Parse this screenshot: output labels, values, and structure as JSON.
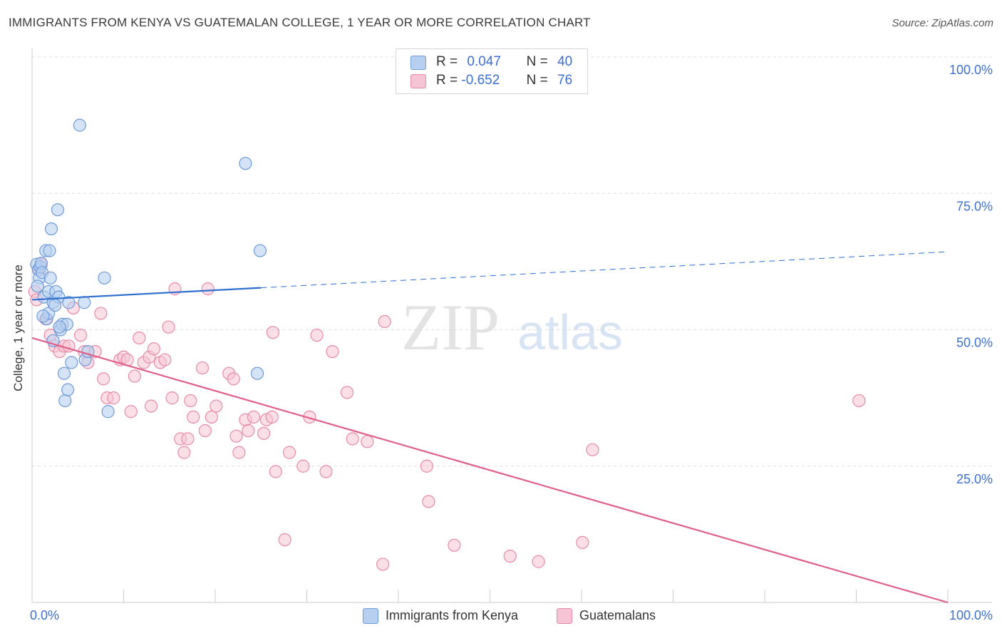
{
  "title": "IMMIGRANTS FROM KENYA VS GUATEMALAN COLLEGE, 1 YEAR OR MORE CORRELATION CHART",
  "source": "Source: ZipAtlas.com",
  "legend": {
    "kenya": {
      "r_label": "R =",
      "r_value": "0.047",
      "n_label": "N =",
      "n_value": "40"
    },
    "guatemalan": {
      "r_label": "R =",
      "r_value": "-0.652",
      "n_label": "N =",
      "n_value": "76"
    }
  },
  "watermark": {
    "zip": "ZIP",
    "atlas": "atlas"
  },
  "colors": {
    "kenya_fill": "#b8d0f0",
    "kenya_stroke": "#6f9ad8",
    "kenya_line": "#2f6fd0",
    "guat_fill": "#f6c4d4",
    "guat_stroke": "#e88aa8",
    "guat_line": "#e0608a",
    "axis_label": "#3e6fd0",
    "grid": "#dddddd"
  },
  "chart_data": {
    "type": "scatter",
    "title": "IMMIGRANTS FROM KENYA VS GUATEMALAN COLLEGE, 1 YEAR OR MORE CORRELATION CHART",
    "xlabel": "",
    "ylabel": "College, 1 year or more",
    "xlim": [
      0,
      100
    ],
    "ylim": [
      0,
      100
    ],
    "x_tick_labels": [
      "0.0%",
      "100.0%"
    ],
    "y_tick_labels": [
      "100.0%",
      "75.0%",
      "50.0%",
      "25.0%"
    ],
    "y_ticks": [
      100,
      75,
      50,
      25
    ],
    "legend_position": "bottom-center",
    "series": [
      {
        "name": "Immigrants from Kenya",
        "r": 0.047,
        "n": 40,
        "trend": {
          "x": [
            0,
            25
          ],
          "y": [
            55.5,
            57.7
          ],
          "dashed_extension": {
            "x": [
              25,
              100
            ],
            "y": [
              57.7,
              64.3
            ]
          }
        },
        "points": [
          [
            0.5,
            62.0
          ],
          [
            0.7,
            61.0
          ],
          [
            0.8,
            59.5
          ],
          [
            0.9,
            61.5
          ],
          [
            1.0,
            62.2
          ],
          [
            1.1,
            60.5
          ],
          [
            1.3,
            56.0
          ],
          [
            1.5,
            64.5
          ],
          [
            1.6,
            52.0
          ],
          [
            1.8,
            57.0
          ],
          [
            1.8,
            53.0
          ],
          [
            1.9,
            64.5
          ],
          [
            2.0,
            59.5
          ],
          [
            2.1,
            68.5
          ],
          [
            2.3,
            55.0
          ],
          [
            2.3,
            48.0
          ],
          [
            2.6,
            57.0
          ],
          [
            2.8,
            72.0
          ],
          [
            2.9,
            56.0
          ],
          [
            3.1,
            50.0
          ],
          [
            3.3,
            51.0
          ],
          [
            3.5,
            42.0
          ],
          [
            3.6,
            37.0
          ],
          [
            3.8,
            51.0
          ],
          [
            3.9,
            39.0
          ],
          [
            4.0,
            55.0
          ],
          [
            4.3,
            44.0
          ],
          [
            5.2,
            87.5
          ],
          [
            5.7,
            55.0
          ],
          [
            5.8,
            44.5
          ],
          [
            6.1,
            46.0
          ],
          [
            7.9,
            59.5
          ],
          [
            8.3,
            35.0
          ],
          [
            23.3,
            80.5
          ],
          [
            24.6,
            42.0
          ],
          [
            24.9,
            64.5
          ],
          [
            0.6,
            58.0
          ],
          [
            1.2,
            52.5
          ],
          [
            2.5,
            54.5
          ],
          [
            3.0,
            50.5
          ]
        ]
      },
      {
        "name": "Guatemalans",
        "r": -0.652,
        "n": 76,
        "trend": {
          "x": [
            0,
            100
          ],
          "y": [
            48.5,
            0.0
          ]
        },
        "points": [
          [
            0.3,
            57.0
          ],
          [
            0.5,
            55.5
          ],
          [
            0.8,
            61.0
          ],
          [
            1.0,
            62.0
          ],
          [
            1.5,
            52.0
          ],
          [
            2.0,
            49.0
          ],
          [
            2.5,
            47.0
          ],
          [
            3.0,
            46.0
          ],
          [
            3.5,
            47.0
          ],
          [
            4.0,
            47.0
          ],
          [
            4.5,
            54.0
          ],
          [
            5.3,
            49.0
          ],
          [
            5.7,
            46.0
          ],
          [
            6.1,
            44.0
          ],
          [
            6.9,
            46.0
          ],
          [
            7.5,
            53.0
          ],
          [
            7.8,
            41.0
          ],
          [
            8.2,
            37.5
          ],
          [
            8.9,
            37.5
          ],
          [
            9.6,
            44.5
          ],
          [
            10.0,
            45.0
          ],
          [
            10.4,
            44.5
          ],
          [
            10.8,
            35.0
          ],
          [
            11.2,
            41.5
          ],
          [
            11.7,
            48.5
          ],
          [
            12.2,
            44.0
          ],
          [
            12.8,
            45.0
          ],
          [
            13.0,
            36.0
          ],
          [
            13.3,
            46.5
          ],
          [
            14.0,
            44.0
          ],
          [
            14.5,
            44.5
          ],
          [
            14.9,
            50.5
          ],
          [
            15.3,
            37.5
          ],
          [
            15.6,
            57.5
          ],
          [
            16.2,
            30.0
          ],
          [
            16.6,
            27.5
          ],
          [
            17.0,
            30.0
          ],
          [
            17.3,
            37.0
          ],
          [
            17.6,
            34.0
          ],
          [
            18.6,
            43.0
          ],
          [
            18.9,
            31.5
          ],
          [
            19.2,
            57.5
          ],
          [
            19.6,
            34.0
          ],
          [
            20.1,
            36.0
          ],
          [
            21.5,
            42.0
          ],
          [
            22.0,
            41.0
          ],
          [
            22.3,
            30.5
          ],
          [
            22.6,
            27.5
          ],
          [
            23.3,
            33.5
          ],
          [
            23.6,
            31.5
          ],
          [
            24.2,
            34.0
          ],
          [
            25.3,
            31.0
          ],
          [
            25.6,
            33.5
          ],
          [
            26.2,
            34.0
          ],
          [
            26.3,
            49.5
          ],
          [
            26.6,
            24.0
          ],
          [
            27.6,
            11.5
          ],
          [
            28.1,
            27.5
          ],
          [
            29.6,
            25.0
          ],
          [
            30.3,
            34.0
          ],
          [
            31.1,
            49.0
          ],
          [
            32.1,
            24.0
          ],
          [
            32.8,
            46.0
          ],
          [
            34.4,
            38.5
          ],
          [
            35.0,
            30.0
          ],
          [
            36.6,
            29.5
          ],
          [
            38.3,
            7.0
          ],
          [
            38.5,
            51.5
          ],
          [
            43.1,
            25.0
          ],
          [
            43.3,
            18.5
          ],
          [
            46.1,
            10.5
          ],
          [
            52.2,
            8.5
          ],
          [
            55.3,
            7.5
          ],
          [
            60.1,
            11.0
          ],
          [
            61.2,
            28.0
          ],
          [
            90.3,
            37.0
          ]
        ]
      }
    ]
  }
}
